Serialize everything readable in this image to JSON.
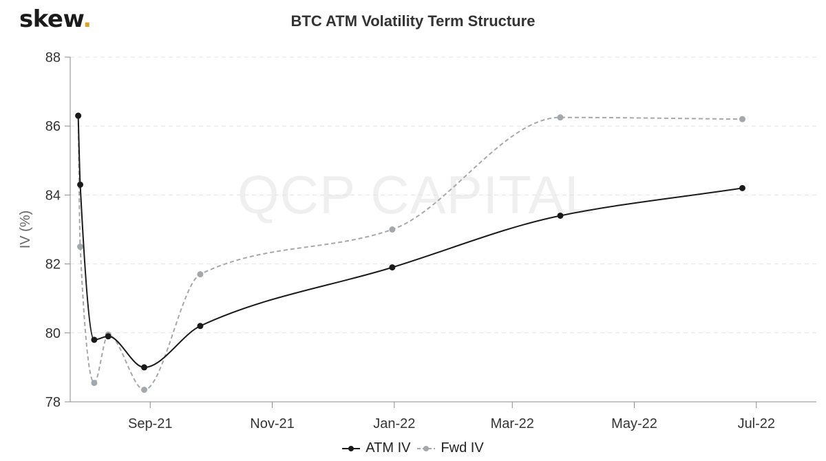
{
  "brand": {
    "name": "skew",
    "dot": ".",
    "dot_color": "#d9a325"
  },
  "watermark": "QCP CAPITAL",
  "chart_data": {
    "type": "line",
    "title": "BTC ATM Volatility Term Structure",
    "xlabel": "",
    "ylabel": "IV (%)",
    "ylim": [
      78,
      88
    ],
    "yticks": [
      78,
      80,
      82,
      84,
      86,
      88
    ],
    "xlim": [
      "2021-07-23",
      "2022-07-31"
    ],
    "xticks": [
      {
        "date": "2021-09-01",
        "label": "Sep-21"
      },
      {
        "date": "2021-11-01",
        "label": "Nov-21"
      },
      {
        "date": "2022-01-01",
        "label": "Jan-22"
      },
      {
        "date": "2022-03-01",
        "label": "Mar-22"
      },
      {
        "date": "2022-05-01",
        "label": "May-22"
      },
      {
        "date": "2022-07-01",
        "label": "Jul-22"
      }
    ],
    "grid": true,
    "legend_position": "bottom-center",
    "series": [
      {
        "name": "ATM IV",
        "color": "#1a1a1a",
        "dashed": false,
        "points": [
          {
            "x": "2021-07-27",
            "y": 86.3
          },
          {
            "x": "2021-07-28",
            "y": 84.3
          },
          {
            "x": "2021-08-04",
            "y": 79.8
          },
          {
            "x": "2021-08-11",
            "y": 79.9
          },
          {
            "x": "2021-08-29",
            "y": 79.0
          },
          {
            "x": "2021-09-26",
            "y": 80.2
          },
          {
            "x": "2021-12-31",
            "y": 81.9
          },
          {
            "x": "2022-03-25",
            "y": 83.4
          },
          {
            "x": "2022-06-24",
            "y": 84.2
          }
        ]
      },
      {
        "name": "Fwd IV",
        "color": "#a3a8ad",
        "dashed": true,
        "points": [
          {
            "x": "2021-07-27",
            "y": 86.3
          },
          {
            "x": "2021-07-28",
            "y": 82.5
          },
          {
            "x": "2021-08-04",
            "y": 78.55
          },
          {
            "x": "2021-08-11",
            "y": 79.95
          },
          {
            "x": "2021-08-29",
            "y": 78.35
          },
          {
            "x": "2021-09-26",
            "y": 81.7
          },
          {
            "x": "2021-12-31",
            "y": 83.0
          },
          {
            "x": "2022-03-25",
            "y": 86.25
          },
          {
            "x": "2022-06-24",
            "y": 86.2
          }
        ]
      }
    ]
  }
}
